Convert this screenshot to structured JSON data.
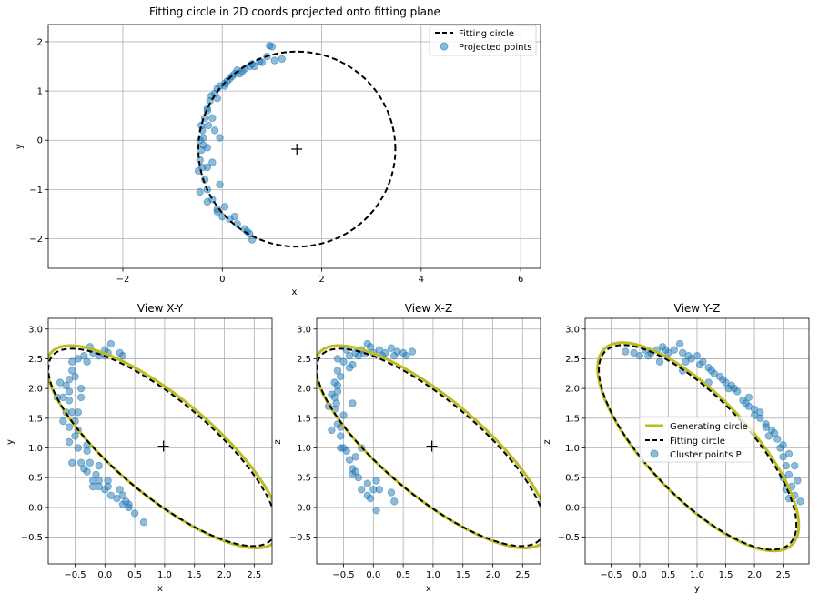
{
  "chart_data": [
    {
      "type": "scatter",
      "title": "Fitting circle in 2D coords projected onto fitting plane",
      "xlabel": "x",
      "ylabel": "y",
      "xlim": [
        -3.5,
        6.4
      ],
      "ylim": [
        -2.6,
        2.35
      ],
      "xticks": [
        -2,
        0,
        2,
        4,
        6
      ],
      "yticks": [
        -2,
        -1,
        0,
        1,
        2
      ],
      "grid": true,
      "legend_position": "upper right",
      "legend": [
        "Fitting circle",
        "Projected points"
      ],
      "center_marker": [
        1.5,
        -0.18
      ],
      "fitting_circle": {
        "cx": 1.5,
        "cy": -0.18,
        "r": 1.98
      },
      "points": [
        [
          -0.45,
          -0.4
        ],
        [
          -0.38,
          -0.1
        ],
        [
          -0.42,
          0.3
        ],
        [
          -0.3,
          0.6
        ],
        [
          -0.22,
          0.9
        ],
        [
          -0.1,
          1.05
        ],
        [
          0.05,
          1.15
        ],
        [
          0.2,
          1.3
        ],
        [
          0.4,
          1.4
        ],
        [
          0.55,
          1.5
        ],
        [
          0.75,
          1.6
        ],
        [
          0.9,
          1.7
        ],
        [
          1.0,
          1.9
        ],
        [
          0.95,
          1.92
        ],
        [
          1.2,
          1.65
        ],
        [
          0.6,
          1.55
        ],
        [
          0.35,
          1.35
        ],
        [
          0.1,
          1.2
        ],
        [
          -0.05,
          1.1
        ],
        [
          -0.15,
          0.95
        ],
        [
          -0.25,
          0.8
        ],
        [
          -0.3,
          0.65
        ],
        [
          -0.35,
          0.45
        ],
        [
          -0.4,
          0.2
        ],
        [
          -0.38,
          0.05
        ],
        [
          -0.42,
          -0.2
        ],
        [
          -0.4,
          -0.55
        ],
        [
          -0.35,
          -0.8
        ],
        [
          -0.3,
          -1.0
        ],
        [
          -0.2,
          -1.2
        ],
        [
          -0.1,
          -1.4
        ],
        [
          0.0,
          -1.55
        ],
        [
          0.15,
          -1.6
        ],
        [
          0.3,
          -1.7
        ],
        [
          0.45,
          -1.8
        ],
        [
          0.55,
          -1.9
        ],
        [
          0.6,
          -2.02
        ],
        [
          0.5,
          -1.85
        ],
        [
          0.25,
          -1.55
        ],
        [
          0.05,
          -1.35
        ],
        [
          -0.05,
          -0.9
        ],
        [
          -0.2,
          -0.45
        ],
        [
          -0.15,
          0.2
        ],
        [
          -0.45,
          -1.05
        ],
        [
          -0.3,
          -1.25
        ],
        [
          -0.1,
          -1.45
        ],
        [
          -0.2,
          0.45
        ],
        [
          -0.1,
          0.85
        ],
        [
          0.15,
          1.25
        ],
        [
          0.45,
          1.45
        ],
        [
          0.8,
          1.58
        ],
        [
          1.05,
          1.62
        ],
        [
          0.25,
          1.35
        ],
        [
          -0.28,
          0.3
        ],
        [
          -0.48,
          -0.62
        ],
        [
          -0.3,
          -0.55
        ],
        [
          -0.45,
          0.0
        ],
        [
          -0.05,
          0.05
        ],
        [
          -0.3,
          -0.15
        ],
        [
          0.3,
          1.42
        ],
        [
          0.65,
          1.5
        ],
        [
          0.05,
          1.1
        ]
      ]
    },
    {
      "type": "scatter",
      "title": "View X-Y",
      "xlabel": "x",
      "ylabel": "y",
      "xlim": [
        -0.95,
        2.8
      ],
      "ylim": [
        -0.95,
        3.18
      ],
      "xticks": [
        -0.5,
        0.0,
        0.5,
        1.0,
        1.5,
        2.0,
        2.5
      ],
      "yticks": [
        -0.5,
        0.0,
        0.5,
        1.0,
        1.5,
        2.0,
        2.5,
        3.0
      ],
      "grid": true,
      "center_marker": [
        0.98,
        1.03
      ],
      "generating_circle": {
        "cx": 0.98,
        "cy": 1.02,
        "semi_major": 2.46,
        "semi_minor": 0.82,
        "angle_deg": -40
      },
      "fitting_circle": {
        "cx": 0.96,
        "cy": 1.01,
        "semi_major": 2.4,
        "semi_minor": 0.8,
        "angle_deg": -40
      },
      "points": [
        [
          -0.75,
          2.1
        ],
        [
          -0.7,
          1.85
        ],
        [
          -0.65,
          1.6
        ],
        [
          -0.6,
          1.35
        ],
        [
          -0.5,
          1.2
        ],
        [
          -0.45,
          1.0
        ],
        [
          -0.4,
          0.75
        ],
        [
          -0.3,
          0.6
        ],
        [
          -0.2,
          0.45
        ],
        [
          -0.1,
          0.35
        ],
        [
          0.0,
          0.3
        ],
        [
          0.1,
          0.2
        ],
        [
          0.2,
          0.15
        ],
        [
          0.3,
          0.05
        ],
        [
          0.4,
          0.0
        ],
        [
          0.5,
          -0.1
        ],
        [
          0.65,
          -0.25
        ],
        [
          0.35,
          0.1
        ],
        [
          0.25,
          0.3
        ],
        [
          0.05,
          0.45
        ],
        [
          -0.1,
          0.7
        ],
        [
          -0.3,
          0.95
        ],
        [
          -0.45,
          1.3
        ],
        [
          -0.55,
          1.6
        ],
        [
          -0.6,
          1.8
        ],
        [
          -0.65,
          2.05
        ],
        [
          -0.55,
          2.3
        ],
        [
          -0.45,
          2.5
        ],
        [
          -0.35,
          2.55
        ],
        [
          -0.2,
          2.6
        ],
        [
          0.0,
          2.65
        ],
        [
          0.1,
          2.75
        ],
        [
          0.05,
          2.6
        ],
        [
          -0.1,
          2.55
        ],
        [
          -0.3,
          2.45
        ],
        [
          -0.5,
          2.2
        ],
        [
          -0.6,
          1.95
        ],
        [
          -0.7,
          1.45
        ],
        [
          -0.55,
          0.75
        ],
        [
          -0.35,
          0.65
        ],
        [
          -0.1,
          0.45
        ],
        [
          -0.2,
          0.35
        ],
        [
          0.3,
          0.2
        ],
        [
          -0.4,
          1.85
        ],
        [
          -0.45,
          1.6
        ],
        [
          -0.25,
          2.7
        ],
        [
          0.3,
          2.55
        ],
        [
          0.0,
          2.55
        ],
        [
          -0.6,
          2.15
        ],
        [
          -0.8,
          1.85
        ],
        [
          -0.5,
          1.45
        ],
        [
          -0.3,
          1.05
        ],
        [
          -0.25,
          0.75
        ],
        [
          -0.15,
          0.55
        ],
        [
          0.05,
          0.35
        ],
        [
          0.4,
          0.05
        ],
        [
          -0.55,
          2.45
        ],
        [
          -0.6,
          1.1
        ],
        [
          -0.4,
          2.0
        ],
        [
          0.25,
          2.6
        ]
      ]
    },
    {
      "type": "scatter",
      "title": "View X-Z",
      "xlabel": "x",
      "ylabel": "z",
      "xlim": [
        -0.95,
        2.8
      ],
      "ylim": [
        -0.95,
        3.18
      ],
      "xticks": [
        -0.5,
        0.0,
        0.5,
        1.0,
        1.5,
        2.0,
        2.5
      ],
      "yticks": [
        -0.5,
        0.0,
        0.5,
        1.0,
        1.5,
        2.0,
        2.5,
        3.0
      ],
      "grid": true,
      "center_marker": [
        0.98,
        1.03
      ],
      "generating_circle": {
        "cx": 0.98,
        "cy": 1.02,
        "semi_major": 2.46,
        "semi_minor": 0.82,
        "angle_deg": -40
      },
      "fitting_circle": {
        "cx": 0.96,
        "cy": 1.01,
        "semi_major": 2.4,
        "semi_minor": 0.8,
        "angle_deg": -40
      },
      "points": [
        [
          -0.75,
          1.7
        ],
        [
          -0.7,
          1.9
        ],
        [
          -0.65,
          2.1
        ],
        [
          -0.6,
          2.3
        ],
        [
          -0.5,
          2.45
        ],
        [
          -0.4,
          2.55
        ],
        [
          -0.3,
          2.6
        ],
        [
          -0.2,
          2.65
        ],
        [
          -0.05,
          2.7
        ],
        [
          0.1,
          2.65
        ],
        [
          0.2,
          2.6
        ],
        [
          0.35,
          2.55
        ],
        [
          0.5,
          2.6
        ],
        [
          0.65,
          2.62
        ],
        [
          0.3,
          2.68
        ],
        [
          -0.1,
          2.75
        ],
        [
          -0.35,
          2.4
        ],
        [
          -0.55,
          2.2
        ],
        [
          -0.6,
          1.95
        ],
        [
          -0.65,
          1.65
        ],
        [
          -0.6,
          1.4
        ],
        [
          -0.55,
          1.2
        ],
        [
          -0.5,
          1.0
        ],
        [
          -0.4,
          0.8
        ],
        [
          -0.35,
          0.65
        ],
        [
          -0.25,
          0.5
        ],
        [
          -0.1,
          0.4
        ],
        [
          0.0,
          0.3
        ],
        [
          0.05,
          0.45
        ],
        [
          0.3,
          0.25
        ],
        [
          0.35,
          0.1
        ],
        [
          0.05,
          -0.05
        ],
        [
          -0.05,
          0.15
        ],
        [
          -0.2,
          0.3
        ],
        [
          -0.35,
          0.55
        ],
        [
          -0.45,
          0.95
        ],
        [
          -0.55,
          1.35
        ],
        [
          -0.62,
          1.75
        ],
        [
          -0.6,
          2.05
        ],
        [
          -0.45,
          2.65
        ],
        [
          -0.25,
          2.55
        ],
        [
          0.0,
          2.6
        ],
        [
          0.15,
          2.55
        ],
        [
          -0.55,
          1.0
        ],
        [
          -0.3,
          0.6
        ],
        [
          -0.2,
          1.0
        ],
        [
          -0.5,
          1.55
        ],
        [
          -0.4,
          2.35
        ],
        [
          0.4,
          2.62
        ],
        [
          -0.15,
          2.58
        ],
        [
          -0.7,
          1.3
        ],
        [
          -0.65,
          1.85
        ],
        [
          -0.3,
          0.85
        ],
        [
          -0.1,
          0.2
        ],
        [
          0.1,
          0.3
        ],
        [
          0.55,
          2.55
        ],
        [
          -0.6,
          2.5
        ],
        [
          -0.35,
          1.75
        ]
      ]
    },
    {
      "type": "scatter",
      "title": "View Y-Z",
      "xlabel": "y",
      "ylabel": "z",
      "xlim": [
        -0.95,
        2.95
      ],
      "ylim": [
        -0.95,
        3.18
      ],
      "xticks": [
        -0.5,
        0.0,
        0.5,
        1.0,
        1.5,
        2.0,
        2.5
      ],
      "yticks": [
        -0.5,
        0.0,
        0.5,
        1.0,
        1.5,
        2.0,
        2.5,
        3.0
      ],
      "grid": true,
      "legend_position": "center right",
      "legend": [
        "Generating circle",
        "Fitting circle",
        "Cluster points P"
      ],
      "generating_circle": {
        "cx": 1.02,
        "cy": 1.02,
        "semi_major": 2.32,
        "semi_minor": 0.87,
        "angle_deg": -45
      },
      "fitting_circle": {
        "cx": 1.01,
        "cy": 1.01,
        "semi_major": 2.28,
        "semi_minor": 0.85,
        "angle_deg": -45
      },
      "points": [
        [
          -0.25,
          2.62
        ],
        [
          -0.1,
          2.6
        ],
        [
          0.0,
          2.55
        ],
        [
          0.1,
          2.65
        ],
        [
          0.2,
          2.6
        ],
        [
          0.3,
          2.65
        ],
        [
          0.4,
          2.7
        ],
        [
          0.5,
          2.6
        ],
        [
          0.6,
          2.65
        ],
        [
          0.7,
          2.75
        ],
        [
          0.75,
          2.6
        ],
        [
          0.8,
          2.45
        ],
        [
          0.9,
          2.5
        ],
        [
          1.0,
          2.55
        ],
        [
          1.1,
          2.45
        ],
        [
          1.2,
          2.35
        ],
        [
          1.3,
          2.25
        ],
        [
          1.4,
          2.2
        ],
        [
          1.5,
          2.1
        ],
        [
          1.6,
          2.05
        ],
        [
          1.7,
          1.95
        ],
        [
          1.8,
          1.8
        ],
        [
          1.9,
          1.7
        ],
        [
          2.0,
          1.65
        ],
        [
          2.1,
          1.5
        ],
        [
          2.2,
          1.4
        ],
        [
          2.3,
          1.3
        ],
        [
          2.4,
          1.15
        ],
        [
          2.45,
          1.0
        ],
        [
          2.5,
          0.85
        ],
        [
          2.55,
          0.7
        ],
        [
          2.6,
          0.55
        ],
        [
          2.65,
          0.35
        ],
        [
          2.7,
          0.2
        ],
        [
          2.8,
          0.1
        ],
        [
          2.75,
          0.45
        ],
        [
          2.7,
          0.7
        ],
        [
          2.6,
          0.9
        ],
        [
          2.5,
          1.05
        ],
        [
          2.35,
          1.25
        ],
        [
          2.2,
          1.35
        ],
        [
          2.0,
          1.55
        ],
        [
          1.85,
          1.75
        ],
        [
          1.65,
          2.0
        ],
        [
          1.45,
          2.15
        ],
        [
          1.25,
          2.3
        ],
        [
          1.05,
          2.4
        ],
        [
          0.85,
          2.55
        ],
        [
          0.45,
          2.65
        ],
        [
          0.15,
          2.55
        ],
        [
          0.35,
          2.45
        ],
        [
          0.75,
          2.3
        ],
        [
          1.2,
          2.1
        ],
        [
          1.55,
          2.0
        ],
        [
          2.25,
          1.2
        ],
        [
          2.55,
          0.3
        ],
        [
          2.6,
          0.15
        ],
        [
          2.5,
          0.5
        ],
        [
          1.9,
          1.85
        ],
        [
          2.1,
          1.6
        ]
      ]
    }
  ],
  "colors": {
    "points": "#1f77b4",
    "generating_circle": "#bcbd22",
    "fitting_circle": "#000000",
    "grid": "#b0b0b0"
  }
}
